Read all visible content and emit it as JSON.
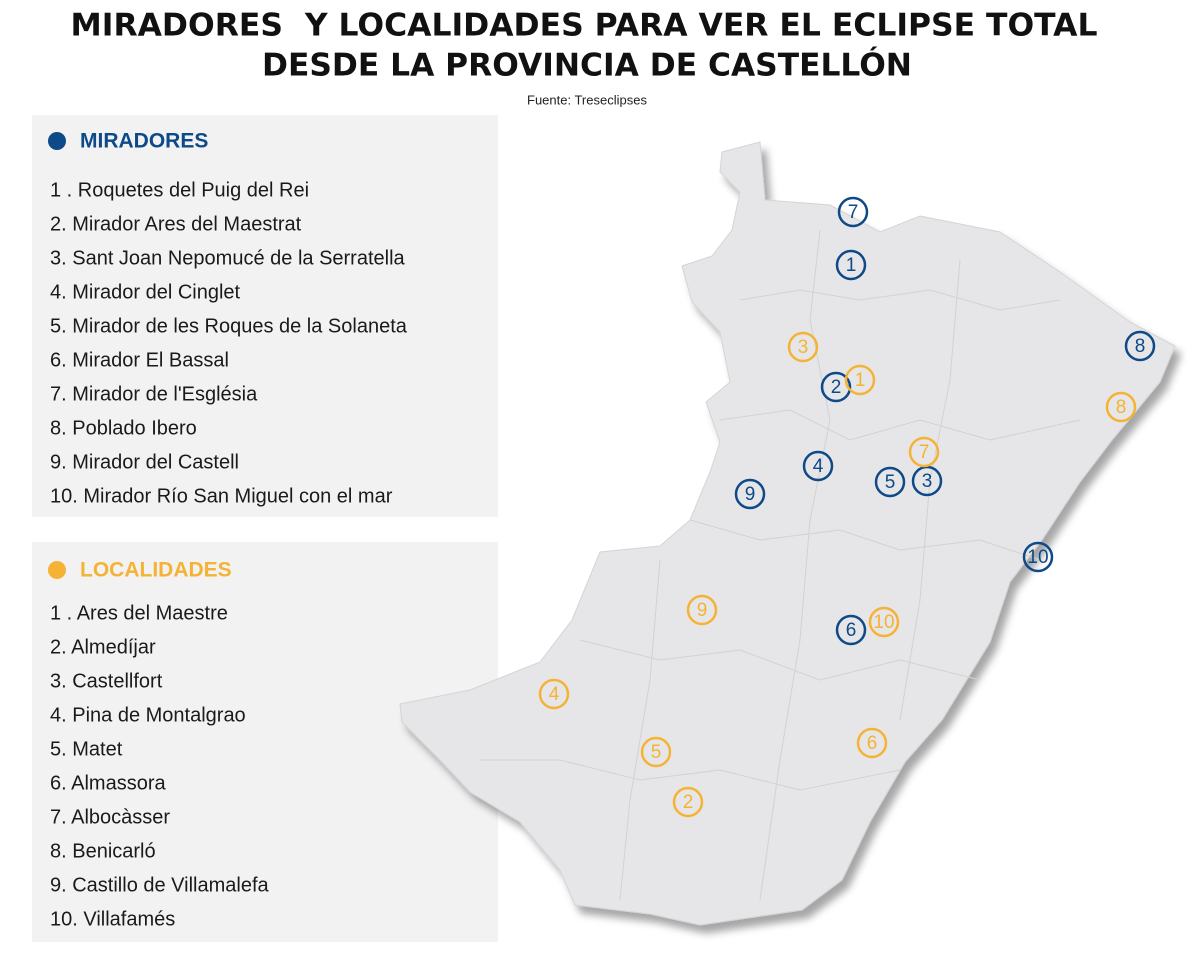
{
  "header": {
    "title": [
      "MIRADORES  Y LOCALIDADES PARA VER EL ECLIPSE TOTAL",
      "DESDE LA PROVINCIA DE CASTELLÓN"
    ],
    "source": "Fuente: Treseclipses"
  },
  "miradores": {
    "heading": "MIRADORES",
    "color": "#0d4a87",
    "items": [
      "1 . Roquetes del Puig del Rei",
      "2. Mirador Ares del Maestrat",
      "3. Sant Joan Nepomucé de la Serratella",
      "4. Mirador del Cinglet",
      "5. Mirador de les Roques de la Solaneta",
      "6. Mirador El Bassal",
      "7. Mirador de l'Església",
      "8. Poblado Ibero",
      "9. Mirador del Castell",
      "10. Mirador Río San Miguel con el mar"
    ]
  },
  "localidades": {
    "heading": "LOCALIDADES",
    "color": "#f5b335",
    "items": [
      "1 . Ares del Maestre",
      "2. Almedíjar",
      "3. Castellfort",
      "4. Pina de Montalgrao",
      "5. Matet",
      "6. Almassora",
      "7. Albocàsser",
      "8. Benicarló",
      "9. Castillo de Villamalefa",
      "10. Villafamés"
    ]
  },
  "map": {
    "mirador_markers": [
      "7",
      "1",
      "2",
      "4",
      "5",
      "3",
      "9",
      "8",
      "10",
      "6"
    ],
    "localidad_markers": [
      "3",
      "1",
      "7",
      "8",
      "9",
      "10",
      "4",
      "5",
      "6",
      "2"
    ]
  }
}
